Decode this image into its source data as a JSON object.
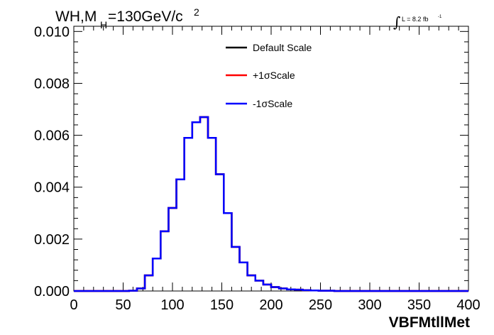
{
  "header": {
    "title_main": "WH,M",
    "title_sub": "H",
    "title_rest": "=130GeV/c",
    "title_sup": "2",
    "lumi_symbol": "∫",
    "lumi_text": "L = 8.2 fb",
    "lumi_sup": "-1"
  },
  "chart_data": {
    "type": "histogram",
    "xlabel": "VBFMtllMet",
    "ylabel": "",
    "xlim": [
      0,
      400
    ],
    "ylim": [
      0,
      0.0102
    ],
    "grid": false,
    "legend_position": "top-center",
    "x_ticks": [
      0,
      50,
      100,
      150,
      200,
      250,
      300,
      350,
      400
    ],
    "x_tick_labels": [
      "0",
      "50",
      "100",
      "150",
      "200",
      "250",
      "300",
      "350",
      "400"
    ],
    "y_ticks": [
      0,
      0.002,
      0.004,
      0.006,
      0.008,
      0.01
    ],
    "y_tick_labels": [
      "0.000",
      "0.002",
      "0.004",
      "0.006",
      "0.008",
      "0.010"
    ],
    "bin_width": 8,
    "bin_edges_start": 0,
    "values": [
      0,
      0,
      0,
      0,
      0,
      0,
      0,
      1e-05,
      0.0001,
      0.0006,
      0.00125,
      0.0023,
      0.0032,
      0.0043,
      0.0059,
      0.0065,
      0.0067,
      0.0059,
      0.0045,
      0.003,
      0.0017,
      0.0011,
      0.0006,
      0.0004,
      0.00025,
      0.00015,
      0.0001,
      6e-05,
      5e-05,
      3e-05,
      2e-05,
      1e-05,
      1e-05,
      0,
      0,
      0,
      0,
      0,
      0,
      0,
      0,
      0,
      0,
      0,
      0,
      0,
      0,
      0,
      0,
      0
    ],
    "series": [
      {
        "name": "Default Scale",
        "color": "#000000",
        "visible_line": false
      },
      {
        "name": "+1σScale",
        "color": "#ff0000",
        "visible_line": false
      },
      {
        "name": "-1σScale",
        "color": "#0000ff",
        "visible_line": true
      }
    ]
  }
}
